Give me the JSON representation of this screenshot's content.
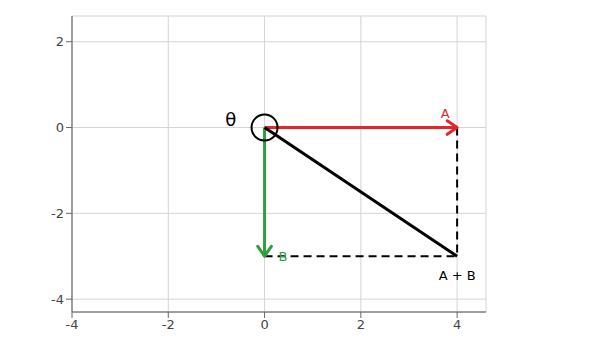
{
  "chart_data": {
    "type": "line",
    "xlim": [
      -4,
      4.6
    ],
    "ylim": [
      -4.3,
      2.6
    ],
    "xticks": [
      -4,
      -2,
      0,
      2,
      4
    ],
    "yticks": [
      -4,
      -2,
      0,
      2
    ],
    "grid": true,
    "series": [
      {
        "name": "A",
        "color": "#e3262b",
        "x": [
          0,
          4
        ],
        "values": [
          0,
          0
        ],
        "marker": "arrow"
      },
      {
        "name": "B",
        "color": "#2e9e3e",
        "x": [
          0,
          0
        ],
        "values": [
          0,
          -3
        ],
        "marker": "arrow"
      },
      {
        "name": "A + B",
        "color": "#000000",
        "x": [
          0,
          4
        ],
        "values": [
          0,
          -3
        ]
      },
      {
        "color": "#000000",
        "x": [
          4,
          4
        ],
        "values": [
          0,
          -3
        ],
        "line_style": "dashed"
      },
      {
        "color": "#000000",
        "x": [
          0,
          4
        ],
        "values": [
          -3,
          -3
        ],
        "line_style": "dashed"
      }
    ],
    "annotations": [
      {
        "text": "θ",
        "x": -0.7,
        "y": 0.15
      }
    ]
  }
}
